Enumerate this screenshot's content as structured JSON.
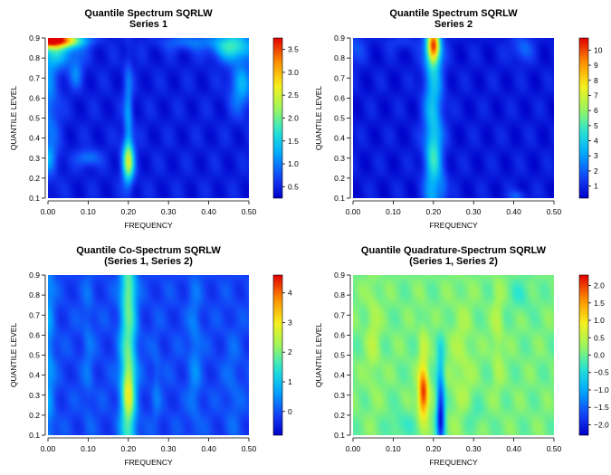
{
  "chart_data": [
    {
      "type": "heatmap",
      "title": "Quantile Spectrum SQRLW",
      "subtitle": "Series 1",
      "xlabel": "FREQUENCY",
      "ylabel": "QUANTILE LEVEL",
      "xlim": [
        0,
        0.5
      ],
      "ylim": [
        0.1,
        0.9
      ],
      "x_ticks": [
        "0.00",
        "0.10",
        "0.20",
        "0.30",
        "0.40",
        "0.50"
      ],
      "y_ticks": [
        "0.1",
        "0.2",
        "0.3",
        "0.4",
        "0.5",
        "0.6",
        "0.7",
        "0.8",
        "0.9"
      ],
      "colorbar": {
        "range": [
          0.25,
          3.75
        ],
        "ticks": [
          "0.5",
          "1.0",
          "1.5",
          "2.0",
          "2.5",
          "3.0",
          "3.5"
        ]
      },
      "base": 0.45,
      "features": [
        {
          "x": 0.2,
          "y": 0.28,
          "sx": 0.011,
          "sy": 0.07,
          "amp": 1.6
        },
        {
          "x": 0.2,
          "y": 0.5,
          "sx": 0.008,
          "sy": 0.2,
          "amp": 0.7
        },
        {
          "x": 0.005,
          "y": 0.89,
          "sx": 0.05,
          "sy": 0.025,
          "amp": 3.2
        },
        {
          "x": 0.03,
          "y": 0.84,
          "sx": 0.035,
          "sy": 0.06,
          "amp": 0.9
        },
        {
          "x": 0.46,
          "y": 0.86,
          "sx": 0.035,
          "sy": 0.05,
          "amp": 1.3
        },
        {
          "x": 0.48,
          "y": 0.66,
          "sx": 0.02,
          "sy": 0.09,
          "amp": 0.8
        },
        {
          "x": 0.0,
          "y": 0.6,
          "sx": 0.02,
          "sy": 0.25,
          "amp": 0.6
        },
        {
          "x": 0.07,
          "y": 0.72,
          "sx": 0.012,
          "sy": 0.05,
          "amp": 0.5
        },
        {
          "x": 0.1,
          "y": 0.3,
          "sx": 0.02,
          "sy": 0.03,
          "amp": 0.6
        },
        {
          "x": 0.0,
          "y": 0.3,
          "sx": 0.015,
          "sy": 0.05,
          "amp": 0.5
        },
        {
          "x": 0.35,
          "y": 0.88,
          "sx": 0.05,
          "sy": 0.03,
          "amp": 0.5
        }
      ]
    },
    {
      "type": "heatmap",
      "title": "Quantile Spectrum SQRLW",
      "subtitle": "Series 2",
      "xlabel": "FREQUENCY",
      "ylabel": "QUANTILE LEVEL",
      "xlim": [
        0,
        0.5
      ],
      "ylim": [
        0.1,
        0.9
      ],
      "x_ticks": [
        "0.00",
        "0.10",
        "0.20",
        "0.30",
        "0.40",
        "0.50"
      ],
      "y_ticks": [
        "0.1",
        "0.2",
        "0.3",
        "0.4",
        "0.5",
        "0.6",
        "0.7",
        "0.8",
        "0.9"
      ],
      "colorbar": {
        "range": [
          0.2,
          10.8
        ],
        "ticks": [
          "1",
          "2",
          "3",
          "4",
          "5",
          "6",
          "7",
          "8",
          "9",
          "10"
        ]
      },
      "base": 0.7,
      "features": [
        {
          "x": 0.2,
          "y": 0.5,
          "sx": 0.017,
          "sy": 0.6,
          "amp": 3.0
        },
        {
          "x": 0.2,
          "y": 0.86,
          "sx": 0.011,
          "sy": 0.06,
          "amp": 7.3
        },
        {
          "x": 0.2,
          "y": 0.32,
          "sx": 0.012,
          "sy": 0.08,
          "amp": 1.2
        },
        {
          "x": 0.225,
          "y": 0.15,
          "sx": 0.008,
          "sy": 0.05,
          "amp": 1.0
        },
        {
          "x": 0.0,
          "y": 0.85,
          "sx": 0.02,
          "sy": 0.06,
          "amp": 1.1
        },
        {
          "x": 0.42,
          "y": 0.85,
          "sx": 0.02,
          "sy": 0.05,
          "amp": 1.4
        },
        {
          "x": 0.41,
          "y": 0.11,
          "sx": 0.015,
          "sy": 0.02,
          "amp": 1.3
        },
        {
          "x": 0.12,
          "y": 0.88,
          "sx": 0.03,
          "sy": 0.03,
          "amp": 0.7
        }
      ]
    },
    {
      "type": "heatmap",
      "title": "Quantile Co-Spectrum SQRLW",
      "subtitle": "(Series 1, Series 2)",
      "xlabel": "FREQUENCY",
      "ylabel": "QUANTILE LEVEL",
      "xlim": [
        0,
        0.5
      ],
      "ylim": [
        0.1,
        0.9
      ],
      "x_ticks": [
        "0.00",
        "0.10",
        "0.20",
        "0.30",
        "0.40",
        "0.50"
      ],
      "y_ticks": [
        "0.1",
        "0.2",
        "0.3",
        "0.4",
        "0.5",
        "0.6",
        "0.7",
        "0.8",
        "0.9"
      ],
      "colorbar": {
        "range": [
          -0.8,
          4.6
        ],
        "ticks": [
          "0",
          "1",
          "2",
          "3",
          "4"
        ]
      },
      "base": -0.1,
      "features": [
        {
          "x": 0.2,
          "y": 0.5,
          "sx": 0.014,
          "sy": 0.7,
          "amp": 1.9
        },
        {
          "x": 0.2,
          "y": 0.32,
          "sx": 0.01,
          "sy": 0.09,
          "amp": 1.2
        },
        {
          "x": 0.2,
          "y": 0.82,
          "sx": 0.01,
          "sy": 0.06,
          "amp": 0.5
        },
        {
          "x": 0.0,
          "y": 0.5,
          "sx": 0.012,
          "sy": 0.6,
          "amp": 0.7
        },
        {
          "x": 0.1,
          "y": 0.55,
          "sx": 0.01,
          "sy": 0.3,
          "amp": 0.35
        },
        {
          "x": 0.27,
          "y": 0.35,
          "sx": 0.008,
          "sy": 0.15,
          "amp": 0.35
        },
        {
          "x": 0.365,
          "y": 0.5,
          "sx": 0.012,
          "sy": 0.3,
          "amp": 0.5
        },
        {
          "x": 0.46,
          "y": 0.35,
          "sx": 0.015,
          "sy": 0.2,
          "amp": 0.3
        }
      ]
    },
    {
      "type": "heatmap",
      "title": "Quantile Quadrature-Spectrum SQRLW",
      "subtitle": "(Series 1, Series 2)",
      "xlabel": "FREQUENCY",
      "ylabel": "QUANTILE LEVEL",
      "xlim": [
        0,
        0.5
      ],
      "ylim": [
        0.1,
        0.9
      ],
      "x_ticks": [
        "0.00",
        "0.10",
        "0.20",
        "0.30",
        "0.40",
        "0.50"
      ],
      "y_ticks": [
        "0.1",
        "0.2",
        "0.3",
        "0.4",
        "0.5",
        "0.6",
        "0.7",
        "0.8",
        "0.9"
      ],
      "colorbar": {
        "range": [
          -2.3,
          2.3
        ],
        "ticks": [
          "−2.0",
          "−1.5",
          "−1.0",
          "−0.5",
          "0.0",
          "0.5",
          "1.0",
          "1.5",
          "2.0"
        ]
      },
      "base": 0.05,
      "features": [
        {
          "x": 0.175,
          "y": 0.3,
          "sx": 0.009,
          "sy": 0.08,
          "amp": 1.8
        },
        {
          "x": 0.175,
          "y": 0.45,
          "sx": 0.008,
          "sy": 0.15,
          "amp": 0.5
        },
        {
          "x": 0.218,
          "y": 0.2,
          "sx": 0.007,
          "sy": 0.12,
          "amp": -2.2
        },
        {
          "x": 0.218,
          "y": 0.45,
          "sx": 0.007,
          "sy": 0.1,
          "amp": -0.6
        },
        {
          "x": 0.05,
          "y": 0.6,
          "sx": 0.012,
          "sy": 0.2,
          "amp": 0.35
        },
        {
          "x": 0.27,
          "y": 0.45,
          "sx": 0.02,
          "sy": 0.25,
          "amp": 0.3
        },
        {
          "x": 0.36,
          "y": 0.6,
          "sx": 0.01,
          "sy": 0.2,
          "amp": 0.35
        },
        {
          "x": 0.12,
          "y": 0.15,
          "sx": 0.02,
          "sy": 0.05,
          "amp": -0.35
        },
        {
          "x": 0.42,
          "y": 0.8,
          "sx": 0.02,
          "sy": 0.06,
          "amp": -0.3
        },
        {
          "x": 0.3,
          "y": 0.2,
          "sx": 0.02,
          "sy": 0.05,
          "amp": -0.25
        }
      ]
    }
  ]
}
